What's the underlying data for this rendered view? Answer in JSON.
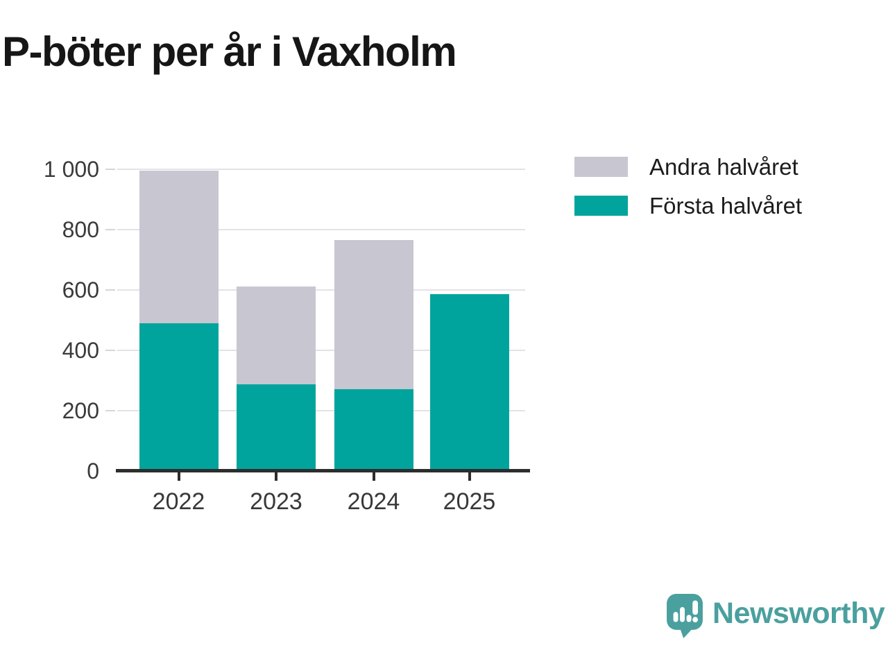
{
  "title": "P-böter per år i Vaxholm",
  "legend": [
    {
      "label": "Andra halvåret",
      "color": "#c7c6d1"
    },
    {
      "label": "Första halvåret",
      "color": "#00a49c"
    }
  ],
  "chart_data": {
    "type": "bar",
    "stacked": true,
    "title": "P-böter per år i Vaxholm",
    "categories": [
      "2022",
      "2023",
      "2024",
      "2025"
    ],
    "series": [
      {
        "name": "Första halvåret",
        "color": "#00a49c",
        "values": [
          490,
          288,
          272,
          587
        ]
      },
      {
        "name": "Andra halvåret",
        "color": "#c7c6d1",
        "values": [
          505,
          324,
          494,
          0
        ]
      }
    ],
    "totals": [
      995,
      612,
      766,
      587
    ],
    "xlabel": "",
    "ylabel": "",
    "ylim": [
      0,
      1000
    ],
    "yticks": [
      0,
      200,
      400,
      600,
      800,
      1000
    ],
    "ytick_labels": [
      "0",
      "200",
      "400",
      "600",
      "800",
      "1 000"
    ],
    "grid": true,
    "legend_position": "right-top"
  },
  "footer": {
    "brand": "Newsworthy",
    "brand_color": "#4aa09e",
    "logo_icon": "newsworthy-speech-bubble-chart-icon"
  }
}
